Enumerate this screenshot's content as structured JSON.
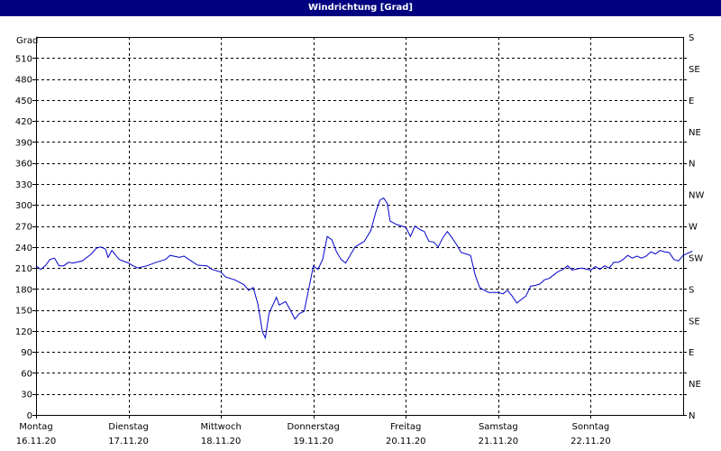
{
  "window": {
    "title": "Windrichtung [Grad]"
  },
  "chart_data": {
    "type": "line",
    "title": "Windrichtung [Grad]",
    "ylabel": "Grad",
    "ylim": [
      0,
      540
    ],
    "y_ticks": [
      0,
      30,
      60,
      90,
      120,
      150,
      180,
      210,
      240,
      270,
      300,
      330,
      360,
      390,
      420,
      450,
      480,
      510
    ],
    "y_ticks_right": [
      "N",
      "NE",
      "E",
      "SE",
      "S",
      "SW",
      "W",
      "NW",
      "N",
      "NE",
      "E",
      "SE",
      "S"
    ],
    "x_categories": [
      {
        "day": "Montag",
        "date": "16.11.20"
      },
      {
        "day": "Dienstag",
        "date": "17.11.20"
      },
      {
        "day": "Mittwoch",
        "date": "18.11.20"
      },
      {
        "day": "Donnerstag",
        "date": "19.11.20"
      },
      {
        "day": "Freitag",
        "date": "20.11.20"
      },
      {
        "day": "Samstag",
        "date": "21.11.20"
      },
      {
        "day": "Sonntag",
        "date": "22.11.20"
      }
    ],
    "xlim_days": [
      0,
      7
    ],
    "grid": true,
    "line_color": "#0000cc",
    "series": [
      {
        "values": [
          [
            0.0,
            213
          ],
          [
            0.05,
            208
          ],
          [
            0.1,
            213
          ],
          [
            0.15,
            222
          ],
          [
            0.2,
            224
          ],
          [
            0.25,
            213
          ],
          [
            0.3,
            213
          ],
          [
            0.35,
            218
          ],
          [
            0.4,
            217
          ],
          [
            0.5,
            220
          ],
          [
            0.55,
            225
          ],
          [
            0.6,
            230
          ],
          [
            0.65,
            238
          ],
          [
            0.7,
            240
          ],
          [
            0.75,
            237
          ],
          [
            0.78,
            225
          ],
          [
            0.82,
            235
          ],
          [
            0.9,
            222
          ],
          [
            1.0,
            217
          ],
          [
            1.05,
            213
          ],
          [
            1.1,
            210
          ],
          [
            1.2,
            213
          ],
          [
            1.3,
            218
          ],
          [
            1.4,
            222
          ],
          [
            1.45,
            228
          ],
          [
            1.55,
            225
          ],
          [
            1.6,
            227
          ],
          [
            1.7,
            218
          ],
          [
            1.75,
            214
          ],
          [
            1.85,
            213
          ],
          [
            1.9,
            208
          ],
          [
            2.0,
            204
          ],
          [
            2.05,
            197
          ],
          [
            2.15,
            193
          ],
          [
            2.25,
            186
          ],
          [
            2.3,
            178
          ],
          [
            2.35,
            182
          ],
          [
            2.4,
            158
          ],
          [
            2.45,
            118
          ],
          [
            2.48,
            110
          ],
          [
            2.52,
            145
          ],
          [
            2.6,
            168
          ],
          [
            2.63,
            157
          ],
          [
            2.7,
            162
          ],
          [
            2.75,
            150
          ],
          [
            2.8,
            137
          ],
          [
            2.85,
            145
          ],
          [
            2.9,
            148
          ],
          [
            2.95,
            180
          ],
          [
            3.0,
            213
          ],
          [
            3.05,
            208
          ],
          [
            3.1,
            222
          ],
          [
            3.15,
            255
          ],
          [
            3.2,
            250
          ],
          [
            3.25,
            233
          ],
          [
            3.3,
            222
          ],
          [
            3.35,
            217
          ],
          [
            3.45,
            240
          ],
          [
            3.55,
            248
          ],
          [
            3.62,
            263
          ],
          [
            3.68,
            292
          ],
          [
            3.72,
            307
          ],
          [
            3.76,
            310
          ],
          [
            3.8,
            302
          ],
          [
            3.83,
            277
          ],
          [
            3.9,
            272
          ],
          [
            4.0,
            268
          ],
          [
            4.05,
            255
          ],
          [
            4.1,
            270
          ],
          [
            4.15,
            265
          ],
          [
            4.2,
            262
          ],
          [
            4.25,
            248
          ],
          [
            4.3,
            247
          ],
          [
            4.35,
            240
          ],
          [
            4.4,
            253
          ],
          [
            4.45,
            262
          ],
          [
            4.5,
            253
          ],
          [
            4.55,
            243
          ],
          [
            4.6,
            232
          ],
          [
            4.65,
            230
          ],
          [
            4.7,
            228
          ],
          [
            4.75,
            200
          ],
          [
            4.8,
            182
          ],
          [
            4.85,
            178
          ],
          [
            4.9,
            175
          ],
          [
            5.0,
            175
          ],
          [
            5.05,
            173
          ],
          [
            5.1,
            178
          ],
          [
            5.15,
            170
          ],
          [
            5.2,
            160
          ],
          [
            5.25,
            165
          ],
          [
            5.3,
            170
          ],
          [
            5.35,
            184
          ],
          [
            5.4,
            185
          ],
          [
            5.45,
            187
          ],
          [
            5.5,
            193
          ],
          [
            5.55,
            195
          ],
          [
            5.6,
            200
          ],
          [
            5.65,
            205
          ],
          [
            5.7,
            208
          ],
          [
            5.75,
            213
          ],
          [
            5.8,
            207
          ],
          [
            5.9,
            210
          ],
          [
            6.0,
            207
          ],
          [
            6.05,
            212
          ],
          [
            6.1,
            208
          ],
          [
            6.15,
            213
          ],
          [
            6.2,
            210
          ],
          [
            6.25,
            218
          ],
          [
            6.3,
            218
          ],
          [
            6.35,
            222
          ],
          [
            6.4,
            228
          ],
          [
            6.45,
            224
          ],
          [
            6.5,
            227
          ],
          [
            6.55,
            224
          ],
          [
            6.6,
            227
          ],
          [
            6.65,
            233
          ],
          [
            6.7,
            230
          ],
          [
            6.75,
            235
          ],
          [
            6.8,
            233
          ],
          [
            6.85,
            232
          ],
          [
            6.9,
            222
          ],
          [
            6.95,
            220
          ],
          [
            7.0,
            228
          ],
          [
            7.1,
            234
          ]
        ]
      }
    ]
  }
}
